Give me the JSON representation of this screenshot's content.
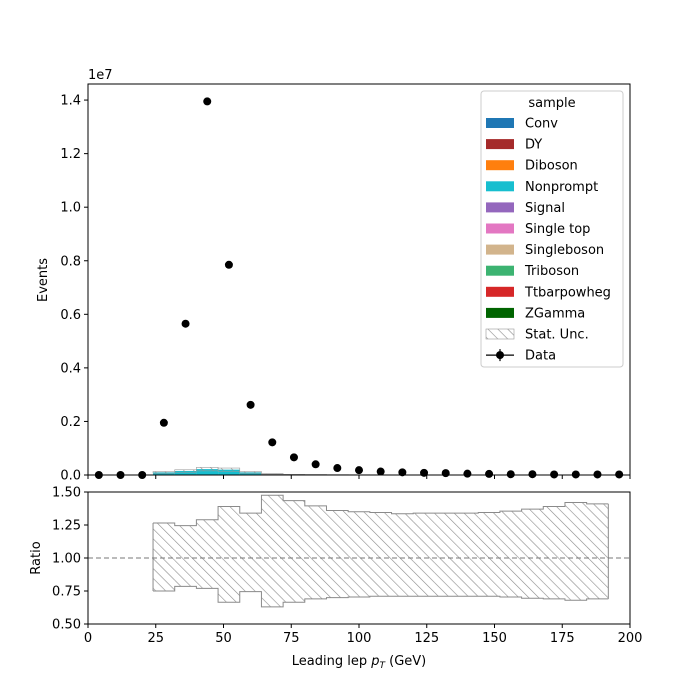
{
  "chart_data": [
    {
      "type": "bar",
      "subtype": "stacked-histogram-with-data-points",
      "ylabel": "Events",
      "scale_label": "1e7",
      "xlim": [
        0,
        200
      ],
      "ylim": [
        0,
        1.46
      ],
      "yticks": [
        "0.0",
        "0.2",
        "0.4",
        "0.6",
        "0.8",
        "1.0",
        "1.2",
        "1.4"
      ],
      "ytick_values": [
        0,
        0.2,
        0.4,
        0.6,
        0.8,
        1.0,
        1.2,
        1.4
      ],
      "legend": {
        "title": "sample",
        "placement": "top-right",
        "entries": [
          {
            "label": "Conv",
            "color": "#1f77b4",
            "kind": "patch"
          },
          {
            "label": "DY",
            "color": "#a52a2a",
            "kind": "patch"
          },
          {
            "label": "Diboson",
            "color": "#ff7f0e",
            "kind": "patch"
          },
          {
            "label": "Nonprompt",
            "color": "#17becf",
            "kind": "patch"
          },
          {
            "label": "Signal",
            "color": "#9467bd",
            "kind": "patch"
          },
          {
            "label": "Single top",
            "color": "#e377c2",
            "kind": "patch"
          },
          {
            "label": "Singleboson",
            "color": "#d2b48c",
            "kind": "patch"
          },
          {
            "label": "Triboson",
            "color": "#3cb371",
            "kind": "patch"
          },
          {
            "label": "Ttbarpowheg",
            "color": "#d62728",
            "kind": "patch"
          },
          {
            "label": "ZGamma",
            "color": "#006400",
            "kind": "patch"
          },
          {
            "label": "Stat. Unc.",
            "color": "#808080",
            "kind": "hatch"
          },
          {
            "label": "Data",
            "color": "#000000",
            "kind": "errorbar"
          }
        ]
      },
      "bin_edges": [
        24,
        32,
        40,
        48,
        56,
        64,
        72,
        80,
        88,
        96,
        104,
        112,
        120,
        128,
        136,
        144,
        152,
        160,
        168,
        176,
        184,
        192
      ],
      "mc_total": [
        0.01,
        0.015,
        0.022,
        0.02,
        0.01,
        0.004,
        0.002,
        0.0015,
        0.001,
        0.0008,
        0.0006,
        0.0005,
        0.0004,
        0.0003,
        0.0003,
        0.0002,
        0.0002,
        0.0002,
        0.0001,
        0.0001,
        0.0001
      ],
      "data_points": {
        "x": [
          4,
          12,
          20,
          28,
          36,
          44,
          52,
          60,
          68,
          76,
          84,
          92,
          100,
          108,
          116,
          124,
          132,
          140,
          148,
          156,
          164,
          172,
          180,
          188,
          196
        ],
        "y": [
          0.0,
          0.0,
          0.0,
          0.195,
          0.565,
          1.395,
          0.785,
          0.262,
          0.122,
          0.066,
          0.04,
          0.026,
          0.018,
          0.013,
          0.01,
          0.008,
          0.007,
          0.005,
          0.004,
          0.003,
          0.003,
          0.002,
          0.002,
          0.002,
          0.002
        ]
      }
    },
    {
      "type": "bar",
      "subtype": "ratio-uncertainty-band",
      "xlabel": "Leading lep pT (GeV)",
      "xlabel_main": "Leading lep ",
      "xlabel_sym": "p",
      "xlabel_sub": "T",
      "xlabel_unit": " (GeV)",
      "ylabel": "Ratio",
      "xlim": [
        0,
        200
      ],
      "ylim": [
        0.5,
        1.5
      ],
      "xticks": [
        "0",
        "25",
        "50",
        "75",
        "100",
        "125",
        "150",
        "175",
        "200"
      ],
      "xtick_values": [
        0,
        25,
        50,
        75,
        100,
        125,
        150,
        175,
        200
      ],
      "yticks": [
        "0.50",
        "0.75",
        "1.00",
        "1.25",
        "1.50"
      ],
      "ytick_values": [
        0.5,
        0.75,
        1.0,
        1.25,
        1.5
      ],
      "reference_line": 1.0,
      "bin_edges": [
        24,
        32,
        40,
        48,
        56,
        64,
        72,
        80,
        88,
        96,
        104,
        112,
        120,
        128,
        136,
        144,
        152,
        160,
        168,
        176,
        184,
        192
      ],
      "band_upper": [
        1.265,
        1.245,
        1.29,
        1.39,
        1.34,
        1.475,
        1.435,
        1.395,
        1.36,
        1.35,
        1.345,
        1.335,
        1.34,
        1.34,
        1.34,
        1.345,
        1.355,
        1.37,
        1.39,
        1.42,
        1.41
      ],
      "band_lower": [
        0.75,
        0.785,
        0.77,
        0.665,
        0.745,
        0.63,
        0.665,
        0.69,
        0.7,
        0.705,
        0.71,
        0.71,
        0.71,
        0.71,
        0.71,
        0.71,
        0.705,
        0.695,
        0.69,
        0.68,
        0.69
      ]
    }
  ]
}
